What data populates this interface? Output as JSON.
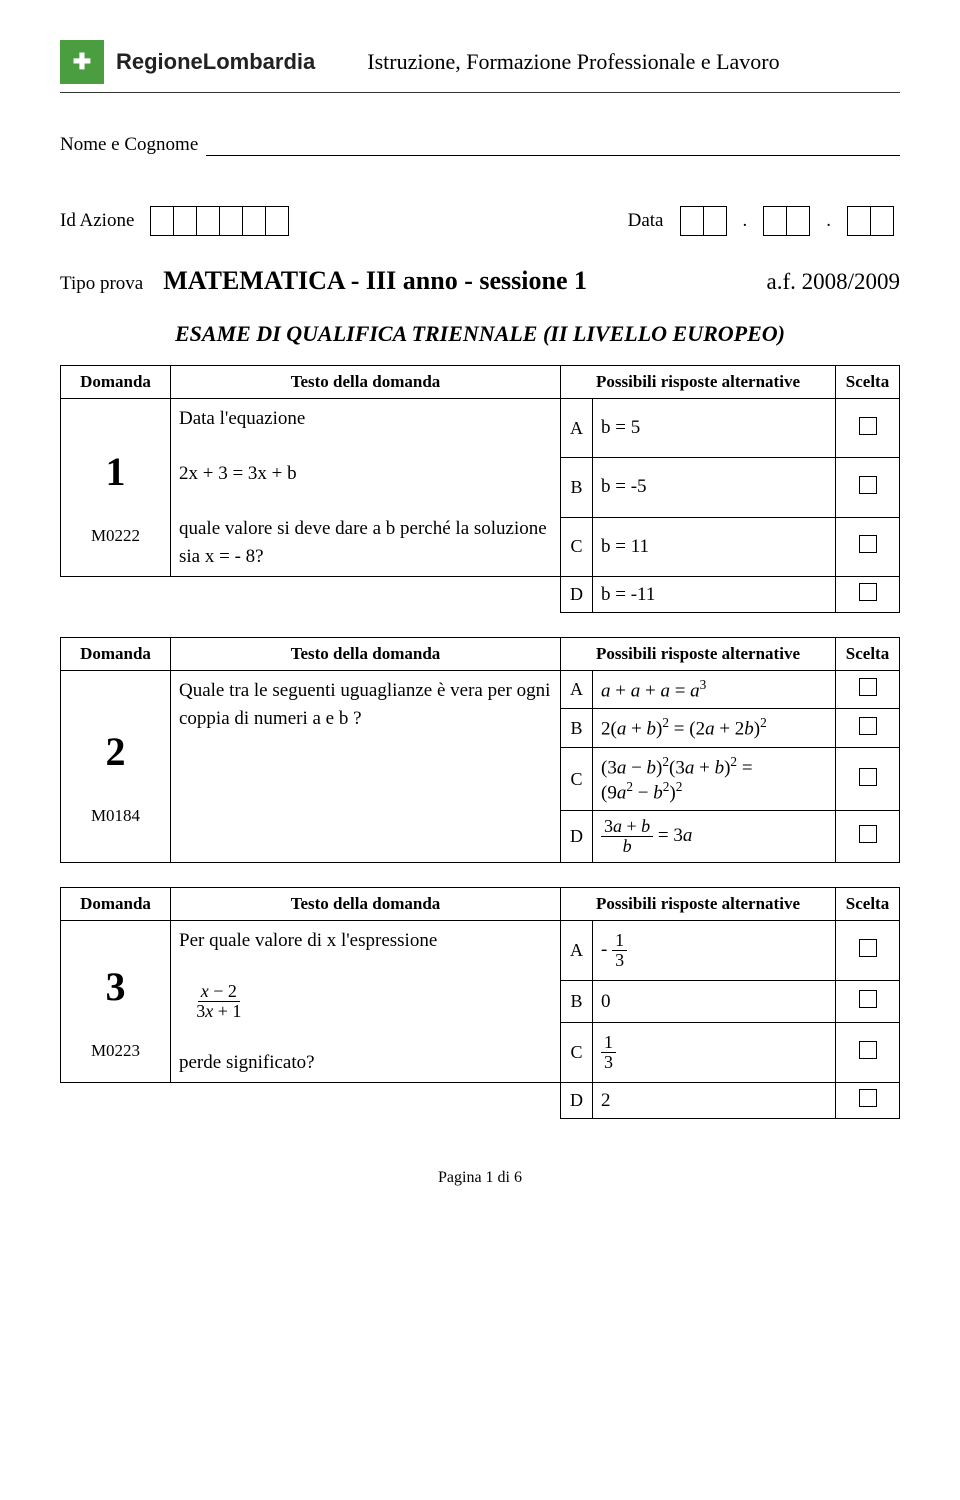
{
  "header": {
    "region_label": "RegioneLombardia",
    "right_text": "Istruzione, Formazione Professionale e Lavoro",
    "logo_bg": "#4a9e3f"
  },
  "fields": {
    "name_label": "Nome e Cognome",
    "id_label": "Id Azione",
    "data_label": "Data",
    "tipo_label": "Tipo prova",
    "exam_title": "MATEMATICA - III anno - sessione 1",
    "af": "a.f. 2008/2009"
  },
  "subtitle": "ESAME DI QUALIFICA TRIENNALE (II LIVELLO EUROPEO)",
  "table_headers": {
    "domanda": "Domanda",
    "testo": "Testo della domanda",
    "risposte": "Possibili risposte alternative",
    "scelta": "Scelta"
  },
  "q1": {
    "num": "1",
    "code": "M0222",
    "text_line1": "Data l'equazione",
    "text_line2": "2x + 3 = 3x + b",
    "text_line3": "quale valore si deve dare a b perché la soluzione sia x = - 8?",
    "a": "b = 5",
    "b": "b = -5",
    "c": "b = 11",
    "d": "b = -11"
  },
  "q2": {
    "num": "2",
    "code": "M0184",
    "text": "Quale tra le seguenti uguaglianze è vera per ogni coppia di numeri  a  e  b ?"
  },
  "q3": {
    "num": "3",
    "code": "M0223",
    "text_line1": "Per quale valore di x l'espressione",
    "text_line3": "perde significato?",
    "b": "0",
    "d": "2"
  },
  "letters": {
    "a": "A",
    "b": "B",
    "c": "C",
    "d": "D"
  },
  "footer": "Pagina 1 di 6"
}
